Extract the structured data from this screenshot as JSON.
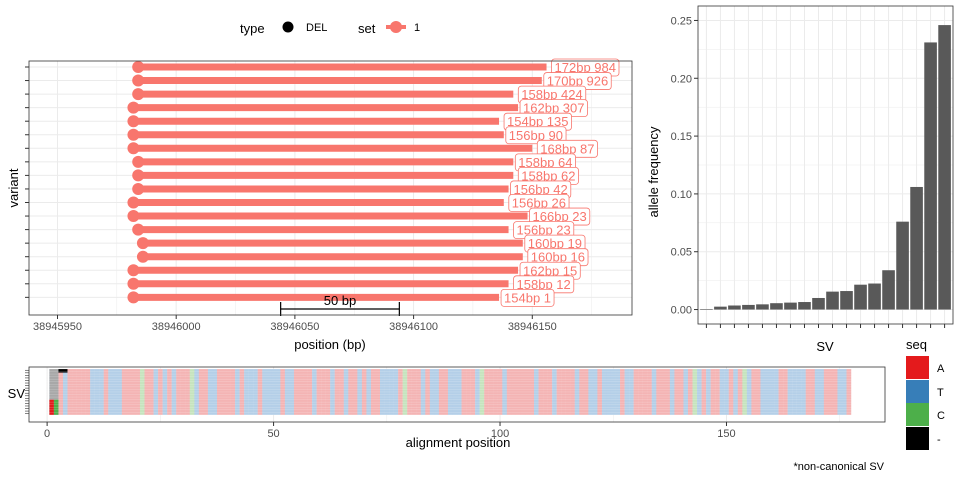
{
  "legend": {
    "type_title": "type",
    "type_label": "DEL",
    "set_title": "set",
    "set_label": "1"
  },
  "colors": {
    "variant": "#F8766D",
    "bar": "#595959",
    "A": "#E41A1C",
    "T": "#377EB8",
    "C": "#4DAF4A",
    "gap": "#000000"
  },
  "scale_bar_label": "50 bp",
  "footnote": "*non-canonical SV",
  "chart_data": [
    {
      "type": "lollipop",
      "xlabel": "position (bp)",
      "ylabel": "variant",
      "xlim": [
        38945938,
        38946192
      ],
      "x_ticks": [
        38945950,
        38946000,
        38946050,
        38946100,
        38946150
      ],
      "x_tick_labels": [
        "38945950",
        "38946000",
        "38946050",
        "38946100",
        "38946150"
      ],
      "scale_bar": {
        "start": 38946044,
        "end": 38946094
      },
      "variants": [
        {
          "start": 38945984,
          "end": 38946156,
          "label": "172bp 984"
        },
        {
          "start": 38945984,
          "end": 38946154,
          "label": "170bp 926"
        },
        {
          "start": 38945984,
          "end": 38946142,
          "label": "158bp 424"
        },
        {
          "start": 38945982,
          "end": 38946144,
          "label": "162bp 307"
        },
        {
          "start": 38945982,
          "end": 38946136,
          "label": "154bp 135"
        },
        {
          "start": 38945982,
          "end": 38946138,
          "label": "156bp 90"
        },
        {
          "start": 38945982,
          "end": 38946150,
          "label": "168bp 87"
        },
        {
          "start": 38945984,
          "end": 38946142,
          "label": "158bp 64"
        },
        {
          "start": 38945984,
          "end": 38946142,
          "label": "158bp 62"
        },
        {
          "start": 38945984,
          "end": 38946140,
          "label": "156bp 42"
        },
        {
          "start": 38945982,
          "end": 38946138,
          "label": "156bp 26"
        },
        {
          "start": 38945982,
          "end": 38946148,
          "label": "166bp 23"
        },
        {
          "start": 38945984,
          "end": 38946140,
          "label": "156bp 23"
        },
        {
          "start": 38945986,
          "end": 38946146,
          "label": "160bp 19"
        },
        {
          "start": 38945986,
          "end": 38946146,
          "label": "160bp 16"
        },
        {
          "start": 38945982,
          "end": 38946144,
          "label": "162bp 15"
        },
        {
          "start": 38945982,
          "end": 38946140,
          "label": "158bp 12"
        },
        {
          "start": 38945982,
          "end": 38946136,
          "label": "154bp 1"
        }
      ]
    },
    {
      "type": "bar",
      "xlabel": "SV",
      "ylabel": "allele frequency",
      "ylim": [
        0,
        0.255
      ],
      "y_ticks": [
        0.0,
        0.05,
        0.1,
        0.15,
        0.2,
        0.25
      ],
      "y_tick_labels": [
        "0.00",
        "0.05",
        "0.10",
        "0.15",
        "0.20",
        "0.25"
      ],
      "values": [
        0.0003,
        0.0025,
        0.0035,
        0.004,
        0.0045,
        0.0055,
        0.006,
        0.0065,
        0.01,
        0.0155,
        0.016,
        0.0215,
        0.0225,
        0.034,
        0.076,
        0.106,
        0.231,
        0.246
      ]
    },
    {
      "type": "heatmap",
      "xlabel": "alignment position",
      "ylabel": "SV",
      "xlim": [
        -4,
        185
      ],
      "x_ticks": [
        0,
        50,
        100,
        150
      ],
      "x_tick_labels": [
        "0",
        "50",
        "100",
        "150"
      ],
      "legend_title": "seq",
      "legend_labels": [
        "A",
        "T",
        "C",
        "-"
      ],
      "n_rows": 18,
      "length": 177
    }
  ]
}
